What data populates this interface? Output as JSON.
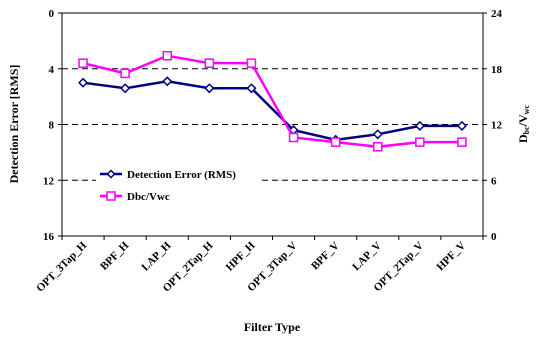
{
  "chart_data": {
    "type": "line",
    "categories": [
      "OPT_3Tap_H",
      "BPF_H",
      "LAP_H",
      "OPT_2Tap_H",
      "HPF_H",
      "OPT_3Tap_V",
      "BPF_V",
      "LAP_V",
      "OPT_2Tap_V",
      "HPF_V"
    ],
    "series": [
      {
        "name": "Detection Error (RMS)",
        "axis": "left",
        "color": "#000080",
        "marker": "diamond",
        "values": [
          5.0,
          5.4,
          4.9,
          5.4,
          5.4,
          8.4,
          9.1,
          8.7,
          8.1,
          8.1
        ]
      },
      {
        "name": "Dbc/Vwc",
        "axis": "right",
        "color": "#ff00ff",
        "marker": "square",
        "values": [
          18.6,
          17.5,
          19.4,
          18.6,
          18.6,
          10.6,
          10.1,
          9.6,
          10.1,
          10.1
        ]
      }
    ],
    "xlabel": "Filter Type",
    "ylabel_left": "Detection Error [RMS]",
    "ylabel_right": {
      "main": "D",
      "sub1": "bc",
      "mid": "/V",
      "sub2": "wc"
    },
    "left_axis": {
      "ylim": [
        0,
        16
      ],
      "inverted": true,
      "ticks": [
        "0",
        "4",
        "8",
        "12",
        "16"
      ],
      "tick_values": [
        0,
        4,
        8,
        12,
        16
      ]
    },
    "right_axis": {
      "ylim": [
        0,
        24
      ],
      "ticks": [
        "0",
        "6",
        "12",
        "18",
        "24"
      ],
      "tick_values": [
        0,
        6,
        12,
        18,
        24
      ]
    },
    "grid": "horizontal dashed",
    "legend_position": "left-middle"
  }
}
